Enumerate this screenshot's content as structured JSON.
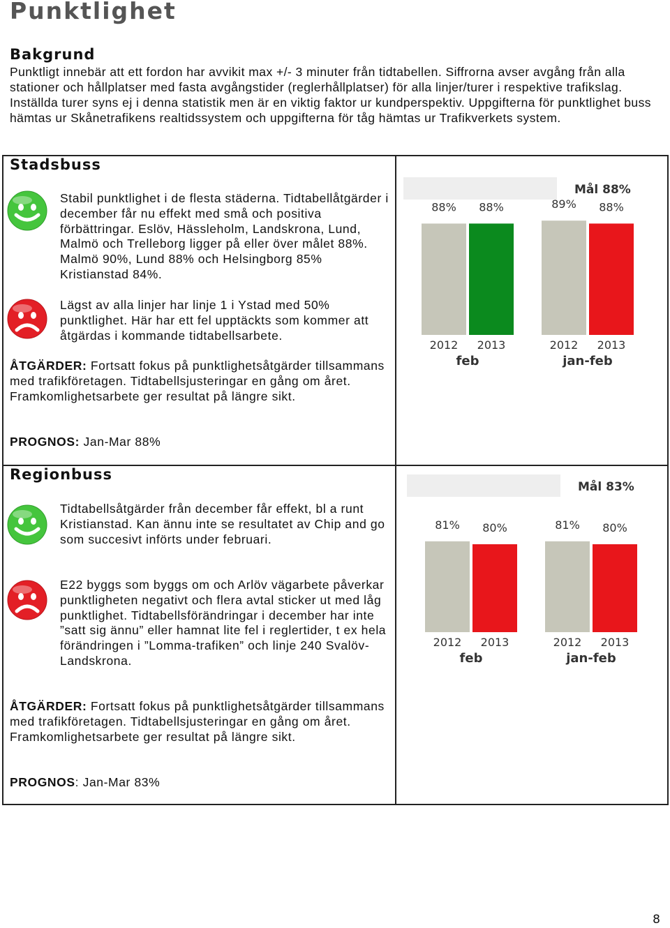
{
  "page": {
    "title": "Punktlighet",
    "page_number": "8"
  },
  "background": {
    "heading": "Bakgrund",
    "text": "Punktligt innebär att ett fordon har avvikit max +/- 3 minuter från tidtabellen. Siffrorna avser avgång från alla stationer och hållplatser med fasta avgångstider (reglerhållplatser) för alla linjer/turer i respektive trafikslag. Inställda turer syns ej i denna statistik men är en viktig faktor ur kundperspektiv. Uppgifterna för punktlighet buss hämtas ur Skånetrafikens realtidssystem och uppgifterna för tåg hämtas ur Trafikverkets system."
  },
  "stadsbuss": {
    "heading": "Stadsbuss",
    "positive": "Stabil punktlighet i de flesta städerna. Tidtabellåtgärder i december får nu effekt med små och positiva förbättringar. Eslöv, Hässleholm, Landskrona, Lund, Malmö och Trelleborg ligger på eller över målet 88%. Malmö 90%, Lund 88% och Helsingborg 85% Kristianstad 84%.",
    "negative": "Lägst av alla linjer har linje 1 i Ystad med 50% punktlighet. Här har ett fel upptäckts som kommer att åtgärdas i kommande tidtabellsarbete.",
    "actions_label": "ÅTGÄRDER:",
    "actions": " Fortsatt fokus på punktlighetsåtgärder tillsammans med trafikföretagen.  Tidtabellsjusteringar en gång om året. Framkomlighetsarbete ger resultat på längre sikt.",
    "forecast_label": "PROGNOS:",
    "forecast": " Jan-Mar 88%"
  },
  "regionbuss": {
    "heading": "Regionbuss",
    "positive": "Tidtabellsåtgärder från december får effekt, bl a runt Kristianstad. Kan ännu inte se resultatet av Chip and go som succesivt införts under februari.",
    "negative": "E22 byggs som byggs om och Arlöv vägarbete påverkar punktligheten negativt och flera avtal sticker ut med låg punktlighet. Tidtabellsförändringar i december har inte ”satt sig ännu” eller hamnat lite fel i reglertider, t ex hela förändringen i ”Lomma-trafiken” och linje 240 Svalöv-Landskrona.",
    "actions_label": "ÅTGÄRDER:",
    "actions": " Fortsatt fokus på punktlighetsåtgärder tillsammans med trafikföretagen.  Tidtabellsjusteringar en gång om året. Framkomlighetsarbete ger resultat på längre sikt.",
    "forecast_label": "PROGNOS",
    "forecast": ": Jan-Mar 83%"
  },
  "colors": {
    "bar_2012": "#c6c6b9",
    "bar_on_target": "#0b8a1e",
    "bar_below_target": "#e8161b",
    "label_text": "#333333",
    "smiley_green": "#45c53d",
    "smiley_red": "#e31f26",
    "target_strip": "#eeeeee"
  },
  "chart_data": [
    {
      "type": "bar",
      "section": "Stadsbuss",
      "target_label": "Mål 88%",
      "target": 88,
      "groups": [
        {
          "label": "feb",
          "bars": [
            {
              "year": "2012",
              "value": 88,
              "label": "88%",
              "color": "#c6c6b9"
            },
            {
              "year": "2013",
              "value": 88,
              "label": "88%",
              "color": "#0b8a1e"
            }
          ]
        },
        {
          "label": "jan-feb",
          "bars": [
            {
              "year": "2012",
              "value": 89,
              "label": "89%",
              "color": "#c6c6b9"
            },
            {
              "year": "2013",
              "value": 88,
              "label": "88%",
              "color": "#e8161b"
            }
          ]
        }
      ]
    },
    {
      "type": "bar",
      "section": "Regionbuss",
      "target_label": "Mål 83%",
      "target": 83,
      "groups": [
        {
          "label": "feb",
          "bars": [
            {
              "year": "2012",
              "value": 81,
              "label": "81%",
              "color": "#c6c6b9"
            },
            {
              "year": "2013",
              "value": 80,
              "label": "80%",
              "color": "#e8161b"
            }
          ]
        },
        {
          "label": "jan-feb",
          "bars": [
            {
              "year": "2012",
              "value": 81,
              "label": "81%",
              "color": "#c6c6b9"
            },
            {
              "year": "2013",
              "value": 80,
              "label": "80%",
              "color": "#e8161b"
            }
          ]
        }
      ]
    }
  ]
}
